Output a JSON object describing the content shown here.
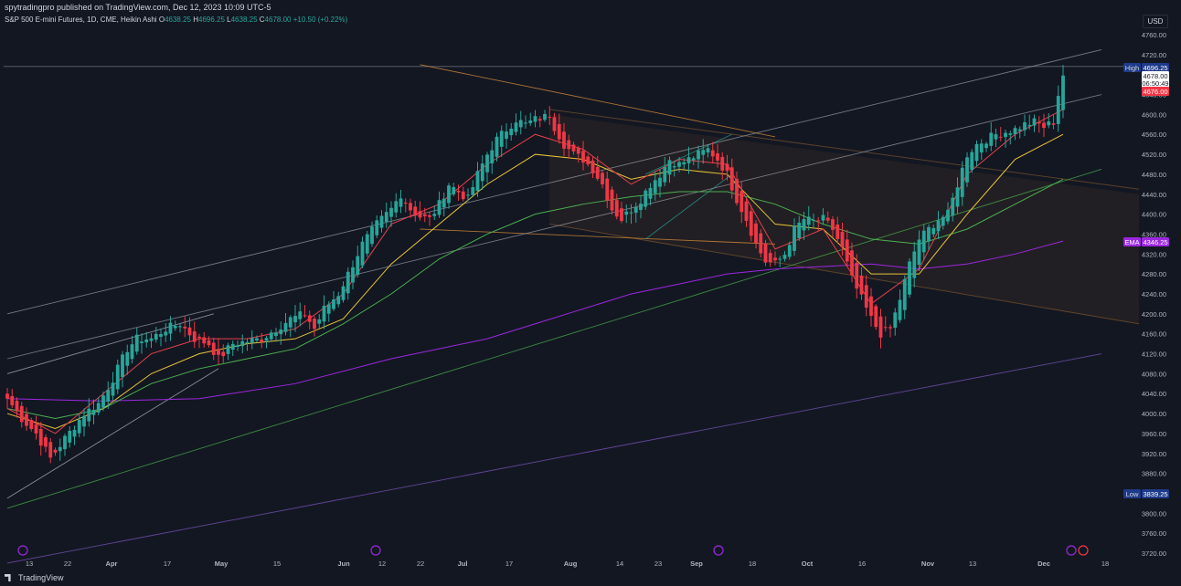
{
  "header": {
    "published_text": "spytradingpro published on TradingView.com, Dec 12, 2023 10:09 UTC-5",
    "symbol_info": "S&P 500 E-mini Futures, 1D, CME, Heikin Ashi",
    "o_label": "O",
    "o_value": "4638.25",
    "h_label": "H",
    "h_value": "4696.25",
    "l_label": "L",
    "l_value": "4638.25",
    "c_label": "C",
    "c_value": "4678.00",
    "change": "+10.50 (+0.22%)"
  },
  "footer": {
    "brand": "TradingView"
  },
  "currency": "USD",
  "colors": {
    "background": "#131722",
    "up": "#26a69a",
    "down": "#f23645",
    "ema_long": "#9c27e0",
    "ema_red": "#e5414b",
    "ema_yellow": "#e8c23a",
    "ema_green": "#4caf50",
    "channel_orange": "#e0903a"
  },
  "chart_data": {
    "type": "candlestick",
    "title": "S&P 500 E-mini Futures, 1D, CME, Heikin Ashi",
    "ylim": [
      3700,
      4780
    ],
    "y_ticks": [
      "4760.00",
      "4720.00",
      "4680.00",
      "4640.00",
      "4600.00",
      "4560.00",
      "4520.00",
      "4480.00",
      "4440.00",
      "4400.00",
      "4360.00",
      "4320.00",
      "4280.00",
      "4240.00",
      "4200.00",
      "4160.00",
      "4120.00",
      "4080.00",
      "4040.00",
      "4000.00",
      "3960.00",
      "3920.00",
      "3880.00",
      "3840.00",
      "3800.00",
      "3760.00",
      "3720.00"
    ],
    "x_ticks": [
      "13",
      "22",
      "Apr",
      "17",
      "May",
      "15",
      "Jun",
      "12",
      "22",
      "Jul",
      "17",
      "Aug",
      "14",
      "23",
      "Sep",
      "18",
      "Oct",
      "16",
      "Nov",
      "13",
      "Dec",
      "18"
    ],
    "price_labels": {
      "high_label": "High",
      "high_value": "4696.25",
      "last_value": "4678.00",
      "countdown": "06:50:49",
      "open_value": "4676.00",
      "ema_label": "EMA",
      "ema_value": "4346.25",
      "low_label": "Low",
      "low_value": "3839.25"
    },
    "anchors": [
      [
        0,
        4030
      ],
      [
        3,
        3990
      ],
      [
        6,
        3960
      ],
      [
        9,
        3910
      ],
      [
        12,
        3950
      ],
      [
        16,
        4000
      ],
      [
        19,
        4020
      ],
      [
        22,
        4070
      ],
      [
        25,
        4130
      ],
      [
        27,
        4150
      ],
      [
        30,
        4150
      ],
      [
        33,
        4170
      ],
      [
        36,
        4180
      ],
      [
        39,
        4150
      ],
      [
        42,
        4140
      ],
      [
        44,
        4110
      ],
      [
        47,
        4140
      ],
      [
        50,
        4145
      ],
      [
        53,
        4150
      ],
      [
        56,
        4170
      ],
      [
        59,
        4190
      ],
      [
        62,
        4200
      ],
      [
        64,
        4170
      ],
      [
        66,
        4210
      ],
      [
        69,
        4240
      ],
      [
        72,
        4300
      ],
      [
        74,
        4340
      ],
      [
        77,
        4380
      ],
      [
        80,
        4410
      ],
      [
        82,
        4440
      ],
      [
        84,
        4410
      ],
      [
        86,
        4395
      ],
      [
        88,
        4390
      ],
      [
        90,
        4420
      ],
      [
        92,
        4460
      ],
      [
        94,
        4445
      ],
      [
        96,
        4430
      ],
      [
        98,
        4480
      ],
      [
        100,
        4520
      ],
      [
        102,
        4550
      ],
      [
        104,
        4570
      ],
      [
        106,
        4590
      ],
      [
        108,
        4580
      ],
      [
        110,
        4590
      ],
      [
        112,
        4595
      ],
      [
        113,
        4600
      ],
      [
        114,
        4575
      ],
      [
        116,
        4540
      ],
      [
        118,
        4520
      ],
      [
        120,
        4510
      ],
      [
        122,
        4490
      ],
      [
        124,
        4460
      ],
      [
        126,
        4410
      ],
      [
        128,
        4390
      ],
      [
        130,
        4410
      ],
      [
        132,
        4430
      ],
      [
        134,
        4460
      ],
      [
        136,
        4480
      ],
      [
        138,
        4510
      ],
      [
        140,
        4500
      ],
      [
        142,
        4510
      ],
      [
        144,
        4520
      ],
      [
        146,
        4530
      ],
      [
        148,
        4510
      ],
      [
        150,
        4480
      ],
      [
        152,
        4430
      ],
      [
        154,
        4390
      ],
      [
        156,
        4340
      ],
      [
        158,
        4305
      ],
      [
        160,
        4300
      ],
      [
        162,
        4320
      ],
      [
        164,
        4370
      ],
      [
        166,
        4390
      ],
      [
        168,
        4385
      ],
      [
        170,
        4390
      ],
      [
        172,
        4370
      ],
      [
        174,
        4330
      ],
      [
        176,
        4270
      ],
      [
        178,
        4230
      ],
      [
        180,
        4190
      ],
      [
        182,
        4160
      ],
      [
        184,
        4170
      ],
      [
        186,
        4230
      ],
      [
        188,
        4300
      ],
      [
        190,
        4350
      ],
      [
        192,
        4370
      ],
      [
        194,
        4390
      ],
      [
        196,
        4400
      ],
      [
        198,
        4460
      ],
      [
        200,
        4520
      ],
      [
        202,
        4540
      ],
      [
        204,
        4550
      ],
      [
        206,
        4560
      ],
      [
        208,
        4565
      ],
      [
        210,
        4570
      ],
      [
        212,
        4580
      ],
      [
        214,
        4585
      ],
      [
        216,
        4575
      ],
      [
        218,
        4585
      ],
      [
        219,
        4640
      ],
      [
        220,
        4678
      ]
    ],
    "ema_lines": [
      {
        "name": "EMA",
        "color": "#9c27e0",
        "points": [
          [
            0,
            4030
          ],
          [
            20,
            4025
          ],
          [
            40,
            4030
          ],
          [
            60,
            4060
          ],
          [
            80,
            4110
          ],
          [
            100,
            4150
          ],
          [
            110,
            4180
          ],
          [
            120,
            4210
          ],
          [
            130,
            4240
          ],
          [
            140,
            4260
          ],
          [
            150,
            4280
          ],
          [
            160,
            4290
          ],
          [
            170,
            4295
          ],
          [
            180,
            4300
          ],
          [
            190,
            4290
          ],
          [
            200,
            4300
          ],
          [
            210,
            4320
          ],
          [
            220,
            4346
          ]
        ]
      },
      {
        "color": "#4caf50",
        "points": [
          [
            0,
            4010
          ],
          [
            10,
            3990
          ],
          [
            20,
            4010
          ],
          [
            30,
            4060
          ],
          [
            40,
            4090
          ],
          [
            50,
            4110
          ],
          [
            60,
            4130
          ],
          [
            70,
            4180
          ],
          [
            80,
            4240
          ],
          [
            90,
            4310
          ],
          [
            100,
            4360
          ],
          [
            110,
            4400
          ],
          [
            120,
            4420
          ],
          [
            130,
            4435
          ],
          [
            140,
            4445
          ],
          [
            150,
            4445
          ],
          [
            160,
            4420
          ],
          [
            170,
            4380
          ],
          [
            180,
            4350
          ],
          [
            190,
            4340
          ],
          [
            200,
            4370
          ],
          [
            210,
            4420
          ],
          [
            220,
            4470
          ]
        ]
      },
      {
        "color": "#e8c23a",
        "points": [
          [
            0,
            4000
          ],
          [
            10,
            3970
          ],
          [
            20,
            4010
          ],
          [
            30,
            4080
          ],
          [
            40,
            4120
          ],
          [
            50,
            4140
          ],
          [
            60,
            4150
          ],
          [
            70,
            4190
          ],
          [
            80,
            4300
          ],
          [
            90,
            4380
          ],
          [
            100,
            4460
          ],
          [
            110,
            4520
          ],
          [
            120,
            4510
          ],
          [
            130,
            4470
          ],
          [
            140,
            4490
          ],
          [
            150,
            4480
          ],
          [
            160,
            4380
          ],
          [
            170,
            4370
          ],
          [
            180,
            4280
          ],
          [
            190,
            4280
          ],
          [
            200,
            4400
          ],
          [
            210,
            4510
          ],
          [
            220,
            4560
          ]
        ]
      },
      {
        "color": "#e5414b",
        "points": [
          [
            0,
            4010
          ],
          [
            10,
            3960
          ],
          [
            20,
            4040
          ],
          [
            30,
            4120
          ],
          [
            40,
            4150
          ],
          [
            50,
            4150
          ],
          [
            60,
            4170
          ],
          [
            70,
            4240
          ],
          [
            80,
            4380
          ],
          [
            90,
            4420
          ],
          [
            100,
            4500
          ],
          [
            110,
            4560
          ],
          [
            120,
            4530
          ],
          [
            130,
            4460
          ],
          [
            140,
            4510
          ],
          [
            150,
            4500
          ],
          [
            160,
            4330
          ],
          [
            170,
            4370
          ],
          [
            180,
            4220
          ],
          [
            190,
            4290
          ],
          [
            200,
            4480
          ],
          [
            210,
            4560
          ],
          [
            220,
            4610
          ]
        ]
      }
    ],
    "channel_lines": [
      {
        "color": "#e0903a",
        "points": [
          [
            86,
            4700
          ],
          [
            160,
            4555
          ]
        ]
      },
      {
        "color": "#e0903a",
        "points": [
          [
            86,
            4370
          ],
          [
            160,
            4340
          ]
        ]
      },
      {
        "color": "#b2b5be",
        "points": [
          [
            0,
            4080
          ],
          [
            43,
            4200
          ]
        ]
      },
      {
        "color": "#b2b5be",
        "points": [
          [
            0,
            3830
          ],
          [
            44,
            4090
          ]
        ]
      },
      {
        "color": "#26a69a",
        "points": [
          [
            133,
            4350
          ],
          [
            151,
            4480
          ]
        ]
      },
      {
        "color": "#26a69a",
        "points": [
          [
            133,
            4480
          ],
          [
            151,
            4560
          ]
        ]
      },
      {
        "color": "#4caf50",
        "points": [
          [
            0,
            3810
          ],
          [
            228,
            4490
          ]
        ]
      },
      {
        "color": "#7e57c2",
        "points": [
          [
            0,
            3700
          ],
          [
            228,
            4120
          ]
        ]
      },
      {
        "color": "#9598a1",
        "points": [
          [
            0,
            4200
          ],
          [
            228,
            4730
          ]
        ]
      },
      {
        "color": "#9598a1",
        "points": [
          [
            0,
            4110
          ],
          [
            228,
            4640
          ]
        ]
      }
    ]
  }
}
